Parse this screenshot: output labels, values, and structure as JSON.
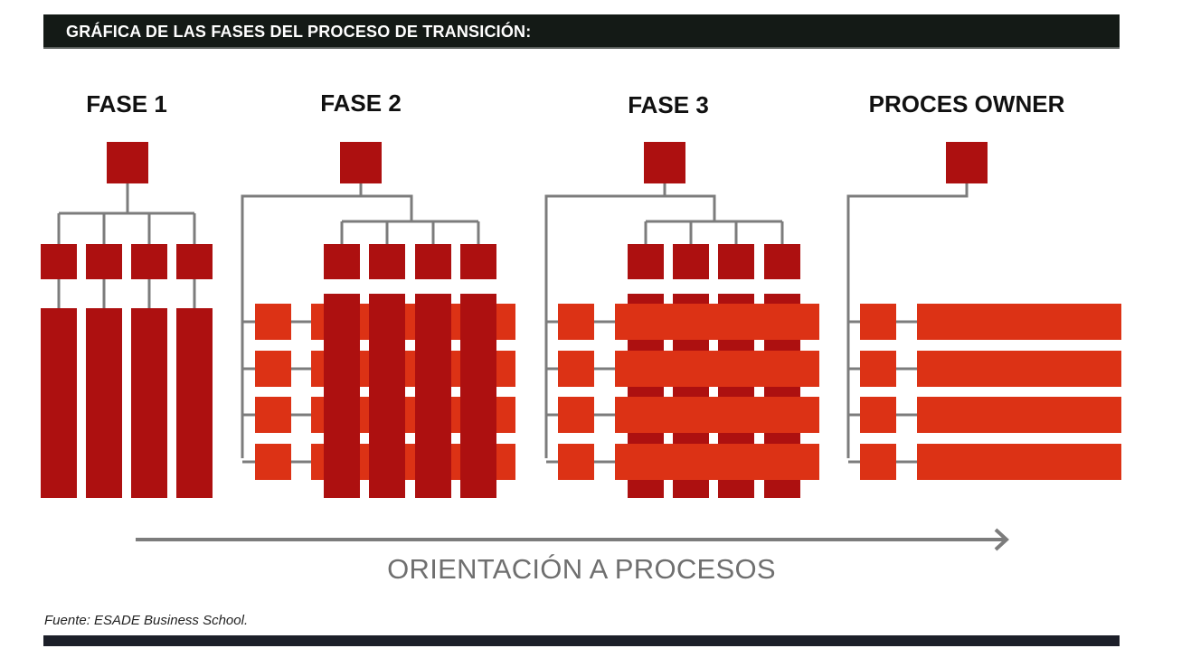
{
  "header": {
    "title": "GRÁFICA DE LAS FASES DEL PROCESO DE TRANSICIÓN:"
  },
  "phases": [
    {
      "label": "FASE 1"
    },
    {
      "label": "FASE 2"
    },
    {
      "label": "FASE 3"
    },
    {
      "label": "PROCES OWNER"
    }
  ],
  "axis": {
    "label": "ORIENTACIÓN A PROCESOS"
  },
  "source": "Fuente: ESADE Business School.",
  "colors": {
    "dark_red": "#ad1010",
    "bright_red": "#dc3215",
    "connector": "#7c7c7c",
    "header_bg": "#141a16",
    "footer_bar": "#1c1f29"
  }
}
